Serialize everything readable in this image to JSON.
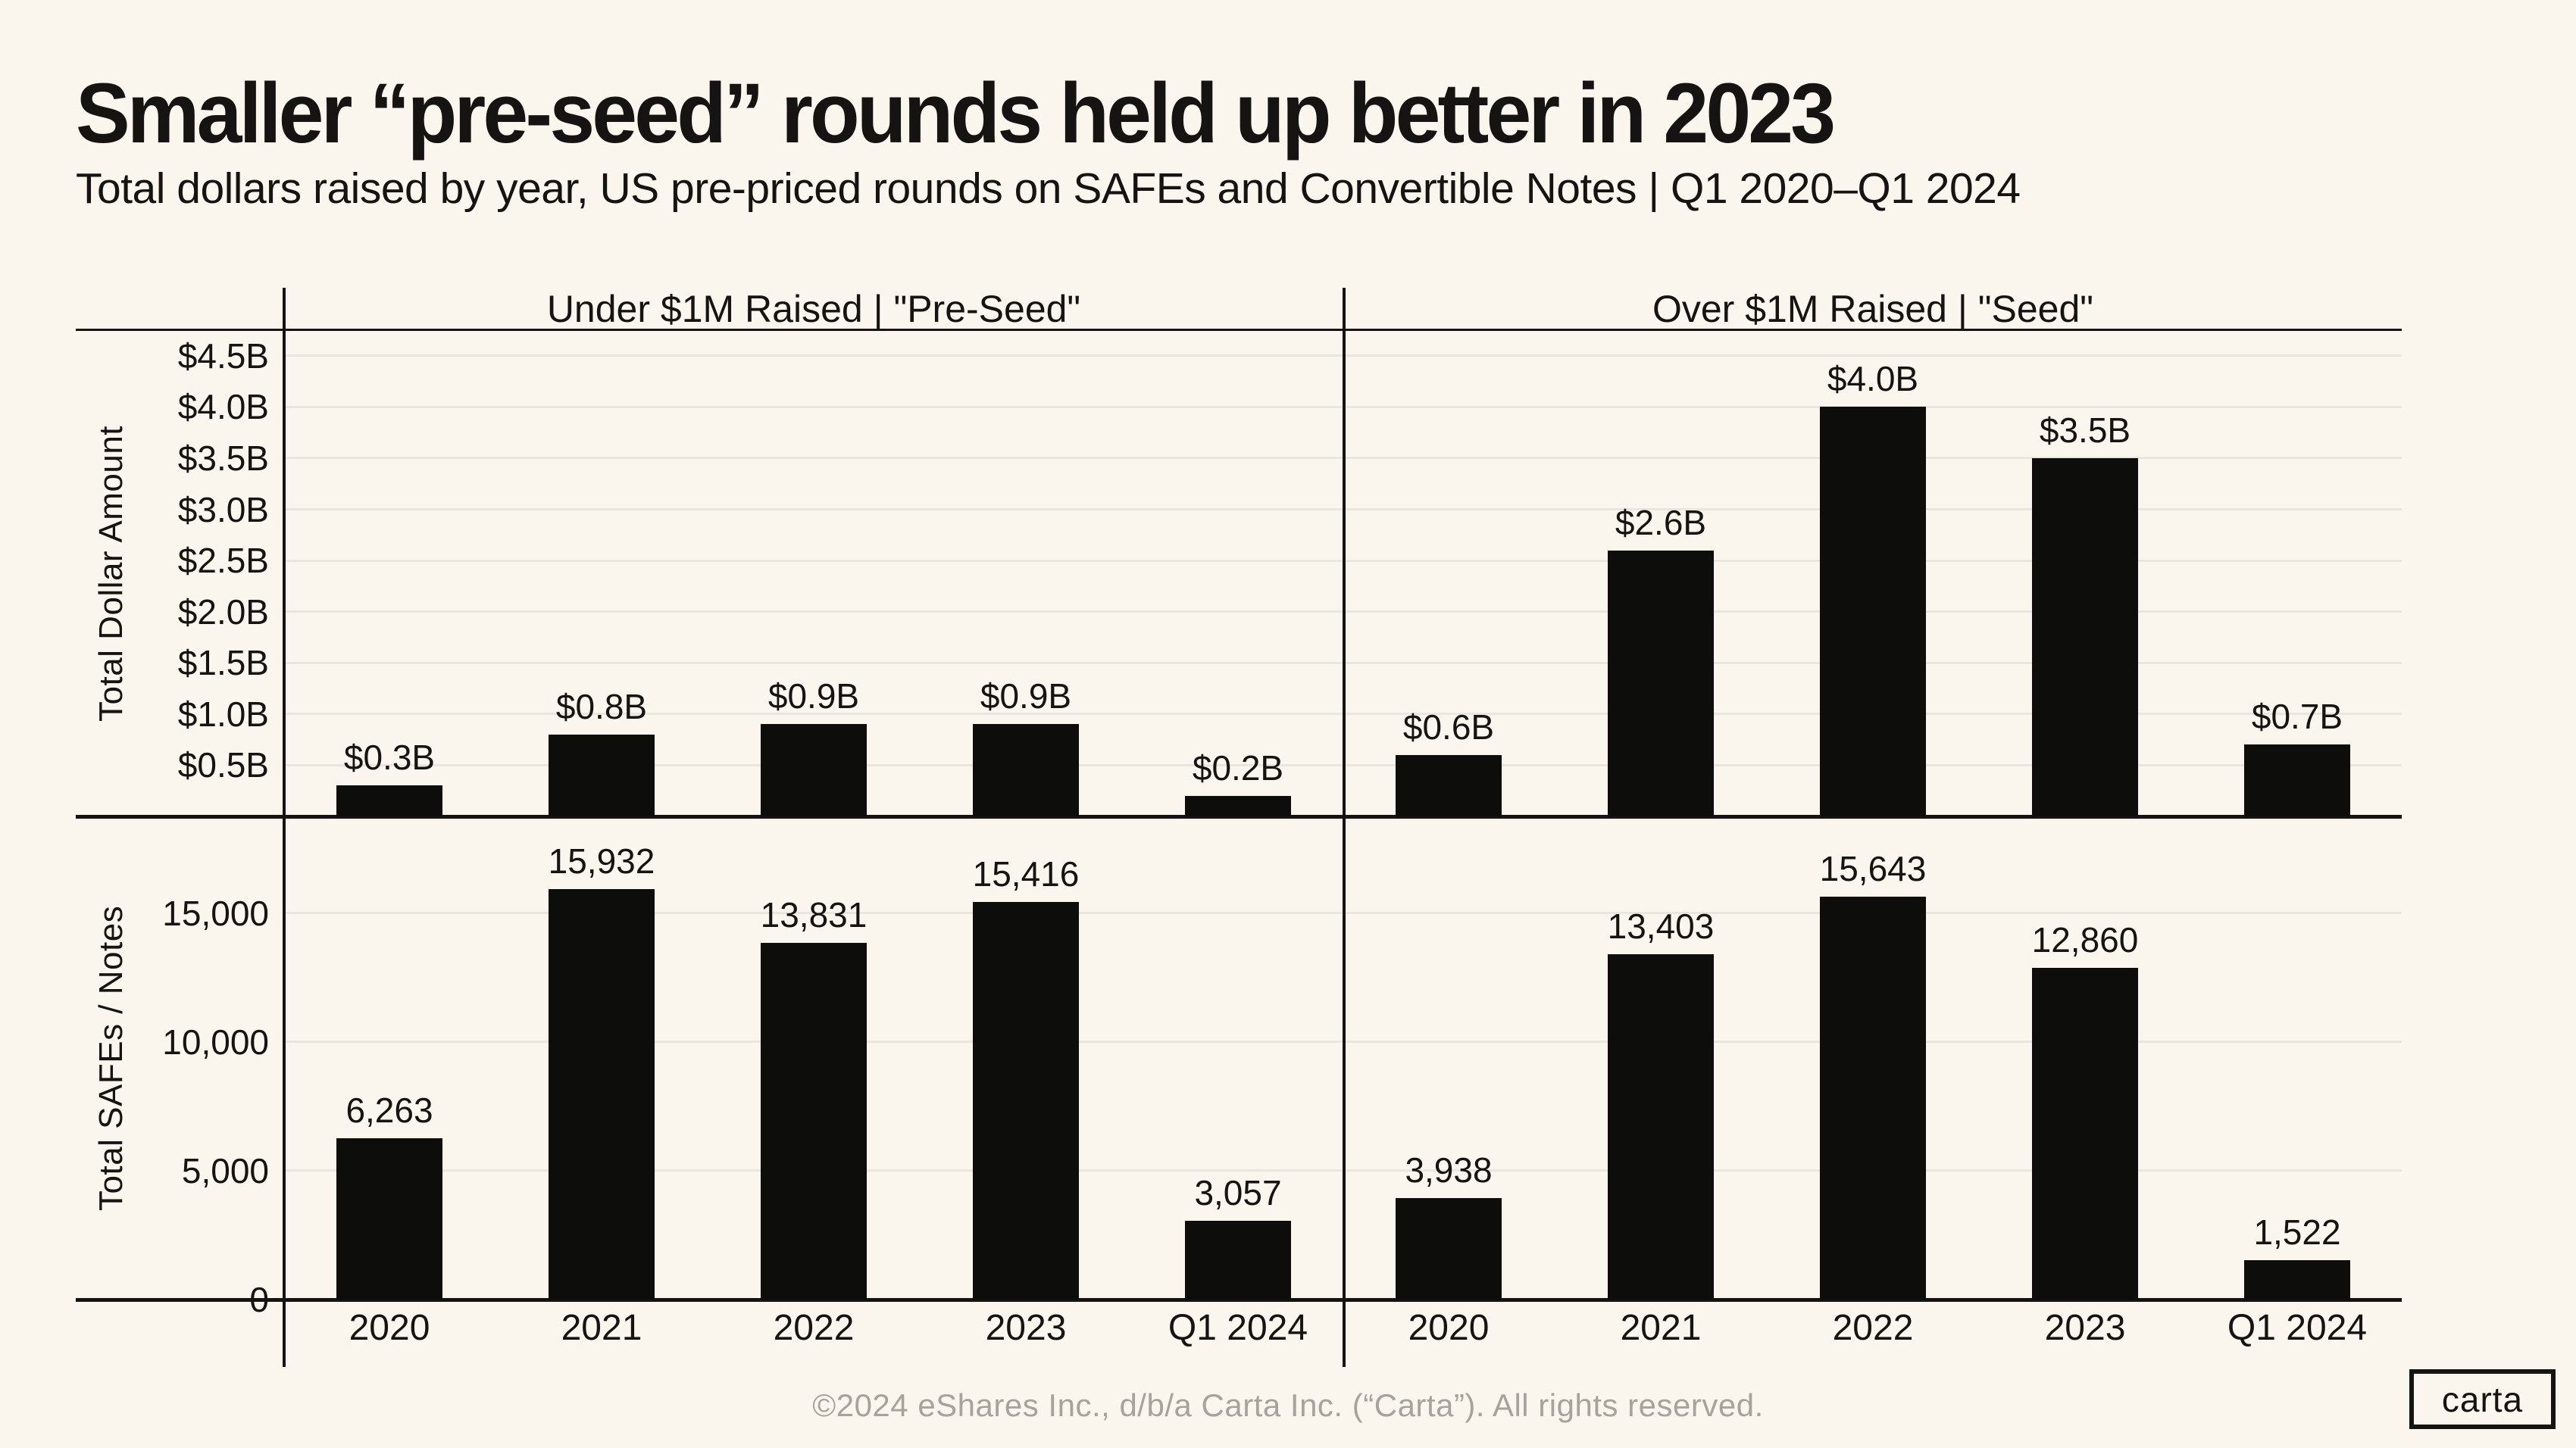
{
  "header": {
    "title": "Smaller “pre-seed” rounds held up better in 2023",
    "subtitle": "Total dollars raised by year, US pre-priced rounds on SAFEs and Convertible Notes | Q1 2020–Q1 2024"
  },
  "chart_data": [
    {
      "type": "bar",
      "panel": "top-left",
      "title": "Under $1M Raised | \"Pre-Seed\"",
      "ylabel": "Total Dollar Amount",
      "unit": "billions USD",
      "categories": [
        "2020",
        "2021",
        "2022",
        "2023",
        "Q1 2024"
      ],
      "values": [
        0.3,
        0.8,
        0.9,
        0.9,
        0.2
      ],
      "value_labels": [
        "$0.3B",
        "$0.8B",
        "$0.9B",
        "$0.9B",
        "$0.2B"
      ],
      "ylim": [
        0,
        4.75
      ],
      "yticks": [
        {
          "value": 0.5,
          "label": "$0.5B"
        },
        {
          "value": 1.0,
          "label": "$1.0B"
        },
        {
          "value": 1.5,
          "label": "$1.5B"
        },
        {
          "value": 2.0,
          "label": "$2.0B"
        },
        {
          "value": 2.5,
          "label": "$2.5B"
        },
        {
          "value": 3.0,
          "label": "$3.0B"
        },
        {
          "value": 3.5,
          "label": "$3.5B"
        },
        {
          "value": 4.0,
          "label": "$4.0B"
        },
        {
          "value": 4.5,
          "label": "$4.5B"
        }
      ],
      "grid": true,
      "legend": null
    },
    {
      "type": "bar",
      "panel": "top-right",
      "title": "Over $1M Raised | \"Seed\"",
      "ylabel": "Total Dollar Amount",
      "unit": "billions USD",
      "categories": [
        "2020",
        "2021",
        "2022",
        "2023",
        "Q1 2024"
      ],
      "values": [
        0.6,
        2.6,
        4.0,
        3.5,
        0.7
      ],
      "value_labels": [
        "$0.6B",
        "$2.6B",
        "$4.0B",
        "$3.5B",
        "$0.7B"
      ],
      "ylim": [
        0,
        4.75
      ],
      "yticks": [
        {
          "value": 0.5,
          "label": "$0.5B"
        },
        {
          "value": 1.0,
          "label": "$1.0B"
        },
        {
          "value": 1.5,
          "label": "$1.5B"
        },
        {
          "value": 2.0,
          "label": "$2.0B"
        },
        {
          "value": 2.5,
          "label": "$2.5B"
        },
        {
          "value": 3.0,
          "label": "$3.0B"
        },
        {
          "value": 3.5,
          "label": "$3.5B"
        },
        {
          "value": 4.0,
          "label": "$4.0B"
        },
        {
          "value": 4.5,
          "label": "$4.5B"
        }
      ],
      "grid": true,
      "legend": null
    },
    {
      "type": "bar",
      "panel": "bottom-left",
      "title": "Under $1M Raised | \"Pre-Seed\"",
      "ylabel": "Total SAFEs / Notes",
      "unit": "count",
      "categories": [
        "2020",
        "2021",
        "2022",
        "2023",
        "Q1 2024"
      ],
      "values": [
        6263,
        15932,
        13831,
        15416,
        3057
      ],
      "value_labels": [
        "6,263",
        "15,932",
        "13,831",
        "15,416",
        "3,057"
      ],
      "ylim": [
        0,
        18750
      ],
      "yticks": [
        {
          "value": 0,
          "label": "0"
        },
        {
          "value": 5000,
          "label": "5,000"
        },
        {
          "value": 10000,
          "label": "10,000"
        },
        {
          "value": 15000,
          "label": "15,000"
        }
      ],
      "grid": true,
      "legend": null
    },
    {
      "type": "bar",
      "panel": "bottom-right",
      "title": "Over $1M Raised | \"Seed\"",
      "ylabel": "Total SAFEs / Notes",
      "unit": "count",
      "categories": [
        "2020",
        "2021",
        "2022",
        "2023",
        "Q1 2024"
      ],
      "values": [
        3938,
        13403,
        15643,
        12860,
        1522
      ],
      "value_labels": [
        "3,938",
        "13,403",
        "15,643",
        "12,860",
        "1,522"
      ],
      "ylim": [
        0,
        18750
      ],
      "yticks": [
        {
          "value": 0,
          "label": "0"
        },
        {
          "value": 5000,
          "label": "5,000"
        },
        {
          "value": 10000,
          "label": "10,000"
        },
        {
          "value": 15000,
          "label": "15,000"
        }
      ],
      "grid": true,
      "legend": null
    }
  ],
  "footer": {
    "text": "©2024 eShares Inc., d/b/a Carta Inc. (“Carta”). All rights reserved.",
    "logo_text": "carta"
  },
  "colors": {
    "background": "#faf6ed",
    "ink": "#151412",
    "bar": "#0d0d0c",
    "grid": "#e9e6e0",
    "footer_text": "#a6a39d"
  }
}
